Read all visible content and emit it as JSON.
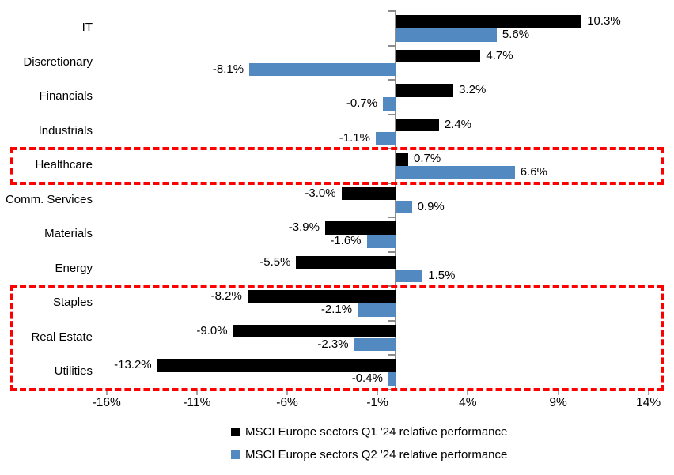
{
  "chart_data": {
    "type": "bar",
    "orientation": "horizontal",
    "title": "",
    "xlabel": "",
    "ylabel": "",
    "grid": false,
    "legend_position": "bottom",
    "categories": [
      "IT",
      "Discretionary",
      "Financials",
      "Industrials",
      "Healthcare",
      "Comm. Services",
      "Materials",
      "Energy",
      "Staples",
      "Real Estate",
      "Utilities"
    ],
    "series": [
      {
        "key": "q1",
        "name": "MSCI Europe sectors Q1 '24 relative performance",
        "color": "#000000",
        "values": [
          10.3,
          4.7,
          3.2,
          2.4,
          0.7,
          -3.0,
          -3.9,
          -5.5,
          -8.2,
          -9.0,
          -13.2
        ],
        "labels": [
          "10.3%",
          "4.7%",
          "3.2%",
          "2.4%",
          "0.7%",
          "-3.0%",
          "-3.9%",
          "-5.5%",
          "-8.2%",
          "-9.0%",
          "-13.2%"
        ]
      },
      {
        "key": "q2",
        "name": "MSCI Europe sectors Q2 '24 relative performance",
        "color": "#5189c0",
        "values": [
          5.6,
          -8.1,
          -0.7,
          -1.1,
          6.6,
          0.9,
          -1.6,
          1.5,
          -2.1,
          -2.3,
          -0.4
        ],
        "labels": [
          "5.6%",
          "-8.1%",
          "-0.7%",
          "-1.1%",
          "6.6%",
          "0.9%",
          "-1.6%",
          "1.5%",
          "-2.1%",
          "-2.3%",
          "-0.4%"
        ]
      }
    ],
    "x_axis": {
      "min": -16,
      "max": 14,
      "ticks": [
        -16,
        -11,
        -6,
        -1,
        4,
        9,
        14
      ],
      "tick_labels": [
        "-16%",
        "-11%",
        "-6%",
        "-1%",
        "4%",
        "9%",
        "14%"
      ]
    },
    "highlights": [
      {
        "shape": "dashed-box",
        "color": "#ff0000",
        "rows": [
          "Healthcare"
        ],
        "row_start": 4,
        "row_end": 4
      },
      {
        "shape": "dashed-box",
        "color": "#ff0000",
        "rows": [
          "Staples",
          "Real Estate",
          "Utilities"
        ],
        "row_start": 8,
        "row_end": 10
      }
    ]
  }
}
